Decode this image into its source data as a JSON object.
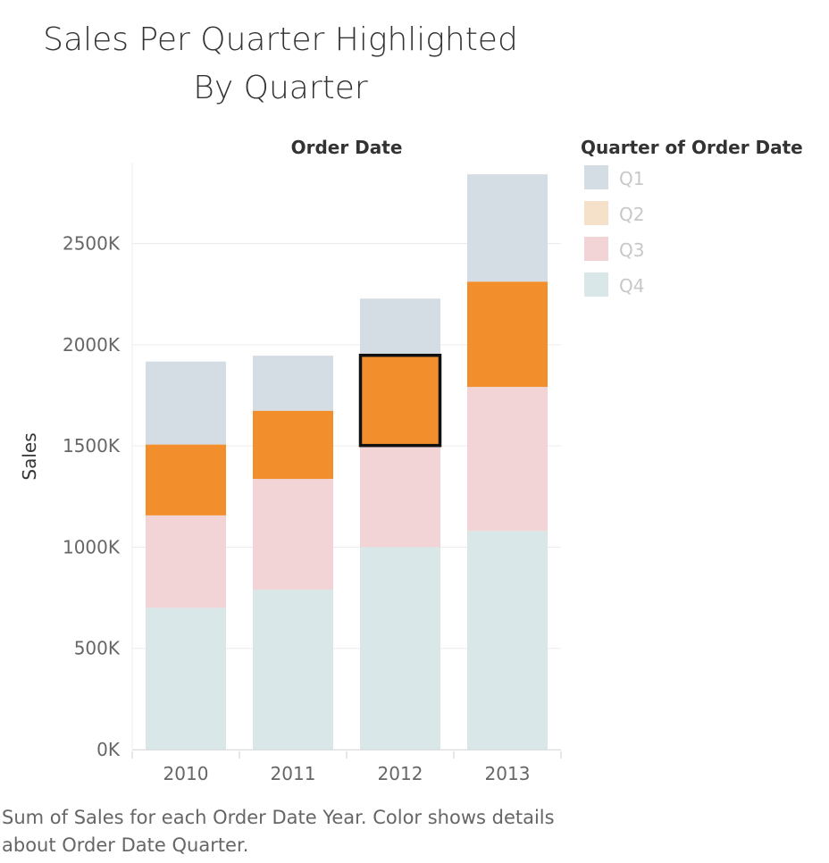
{
  "page": {
    "title": "Sales Per Quarter Highlighted\nBy Quarter",
    "caption": "Sum of Sales for each Order Date Year.  Color shows details about Order Date Quarter."
  },
  "chart_data": {
    "type": "bar",
    "stacked": true,
    "title": "Sales Per Quarter Highlighted By Quarter",
    "column_header": "Order Date",
    "xlabel": "",
    "ylabel": "Sales",
    "categories": [
      "2010",
      "2011",
      "2012",
      "2013"
    ],
    "ylim": [
      0,
      2900
    ],
    "yticks": [
      0,
      500,
      1000,
      1500,
      2000,
      2500
    ],
    "ytick_labels": [
      "0K",
      "500K",
      "1000K",
      "1500K",
      "2000K",
      "2500K"
    ],
    "grid": true,
    "legend": {
      "title": "Quarter of Order Date",
      "placement": "right"
    },
    "series": [
      {
        "name": "Q4",
        "color": "#d9e7e8",
        "values": [
          700,
          790,
          1000,
          1080
        ]
      },
      {
        "name": "Q3",
        "color": "#f2d4d7",
        "values": [
          457,
          547,
          500,
          712
        ]
      },
      {
        "name": "Q2",
        "color": "#f28e2b",
        "values": [
          350,
          337,
          450,
          520
        ]
      },
      {
        "name": "Q1",
        "color": "#d4dce4",
        "values": [
          410,
          272,
          278,
          530
        ]
      }
    ],
    "legend_order": [
      "Q1",
      "Q2",
      "Q3",
      "Q4"
    ],
    "legend_colors": {
      "Q1": "#d4dce4",
      "Q2": "#f5e1c9",
      "Q3": "#f2d4d7",
      "Q4": "#d9e7e8"
    },
    "highlight": {
      "category": "2012",
      "series": "Q2"
    }
  }
}
